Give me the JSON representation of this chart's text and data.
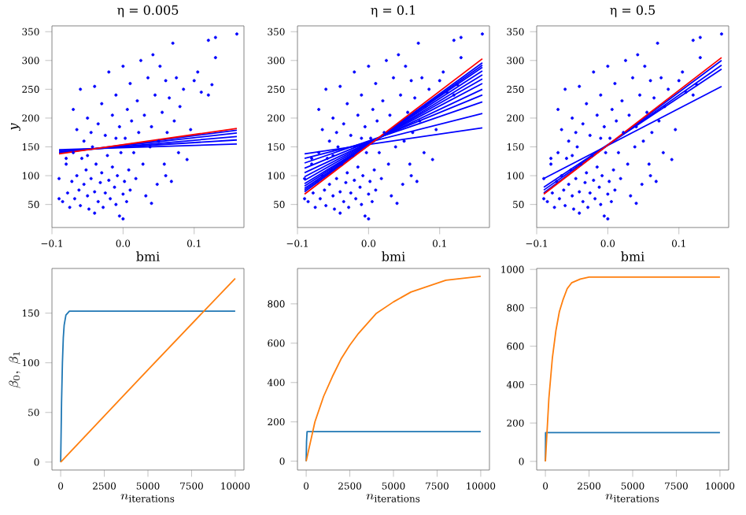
{
  "chart_data": [
    {
      "type": "scatter",
      "title": "η = 0.005",
      "xlabel": "bmi",
      "ylabel": "*y*",
      "xlim": [
        -0.1,
        0.17
      ],
      "ylim": [
        10,
        360
      ],
      "xticks": [
        {
          "value": -0.1,
          "label": "−0.1"
        },
        {
          "value": 0,
          "label": "0.0"
        },
        {
          "value": 0.1,
          "label": "0.1"
        }
      ],
      "yticks": [
        50,
        100,
        150,
        200,
        250,
        300,
        350
      ],
      "series": [
        {
          "type": "scatter",
          "color": "#0000ff",
          "x": [
            -0.09,
            -0.085,
            -0.08,
            -0.078,
            -0.075,
            -0.072,
            -0.07,
            -0.068,
            -0.065,
            -0.062,
            -0.06,
            -0.058,
            -0.055,
            -0.052,
            -0.05,
            -0.048,
            -0.045,
            -0.043,
            -0.04,
            -0.038,
            -0.035,
            -0.032,
            -0.03,
            -0.028,
            -0.025,
            -0.022,
            -0.02,
            -0.018,
            -0.015,
            -0.012,
            -0.01,
            -0.008,
            -0.005,
            -0.003,
            0.0,
            0.002,
            0.005,
            0.008,
            -0.07,
            -0.065,
            -0.06,
            -0.055,
            -0.05,
            -0.045,
            -0.04,
            -0.035,
            -0.03,
            -0.025,
            -0.02,
            -0.015,
            -0.01,
            -0.005,
            0.0,
            0.003,
            0.006,
            0.01,
            0.012,
            0.015,
            0.018,
            0.02,
            0.022,
            0.025,
            0.028,
            0.03,
            0.032,
            0.035,
            0.038,
            0.04,
            0.042,
            0.045,
            0.048,
            0.05,
            0.052,
            0.055,
            0.058,
            0.06,
            0.062,
            0.065,
            0.068,
            0.07,
            0.072,
            0.075,
            0.078,
            0.08,
            0.085,
            0.09,
            0.095,
            0.1,
            0.105,
            0.11,
            0.12,
            0.12,
            0.125,
            0.13,
            0.13,
            0.16,
            -0.09,
            -0.08,
            -0.04,
            0.0,
            -0.01,
            -0.05,
            0.01,
            0.04,
            0.06
          ],
          "values": [
            95,
            55,
            120,
            70,
            45,
            90,
            140,
            60,
            100,
            75,
            48,
            130,
            85,
            110,
            65,
            42,
            95,
            150,
            72,
            120,
            55,
            88,
            105,
            45,
            70,
            135,
            92,
            60,
            115,
            80,
            50,
            100,
            30,
            140,
            68,
            90,
            55,
            110,
            215,
            180,
            250,
            160,
            200,
            175,
            255,
            190,
            225,
            170,
            280,
            205,
            240,
            185,
            290,
            165,
            215,
            260,
            195,
            140,
            95,
            230,
            175,
            300,
            120,
            205,
            65,
            270,
            150,
            185,
            310,
            240,
            85,
            160,
            290,
            210,
            120,
            265,
            175,
            235,
            90,
            330,
            195,
            270,
            140,
            220,
            250,
            128,
            180,
            265,
            280,
            245,
            240,
            335,
            258,
            305,
            340,
            346,
            60,
            130,
            35,
            25,
            165,
            135,
            75,
            52,
            100
          ]
        },
        {
          "type": "line",
          "color": "#0000ff",
          "x": [
            -0.09,
            0.16
          ],
          "values": [
            145,
            155
          ]
        },
        {
          "type": "line",
          "color": "#0000ff",
          "x": [
            -0.09,
            0.16
          ],
          "values": [
            143,
            162
          ]
        },
        {
          "type": "line",
          "color": "#0000ff",
          "x": [
            -0.09,
            0.16
          ],
          "values": [
            141,
            168
          ]
        },
        {
          "type": "line",
          "color": "#0000ff",
          "x": [
            -0.09,
            0.16
          ],
          "values": [
            140,
            174
          ]
        },
        {
          "type": "line",
          "color": "#0000ff",
          "x": [
            -0.09,
            0.16
          ],
          "values": [
            139,
            179
          ]
        },
        {
          "type": "line",
          "color": "#ff0000",
          "x": [
            -0.09,
            0.16
          ],
          "values": [
            138,
            182
          ]
        }
      ]
    },
    {
      "type": "scatter",
      "title": "η = 0.1",
      "xlabel": "bmi",
      "xlim": [
        -0.1,
        0.17
      ],
      "ylim": [
        10,
        360
      ],
      "xticks": [
        {
          "value": -0.1,
          "label": "−0.1"
        },
        {
          "value": 0,
          "label": "0.0"
        },
        {
          "value": 0.1,
          "label": "0.1"
        }
      ],
      "yticks": [
        50,
        100,
        150,
        200,
        250,
        300,
        350
      ],
      "series": [
        {
          "type": "scatter",
          "color": "#0000ff",
          "x": [
            -0.09,
            -0.085,
            -0.08,
            -0.078,
            -0.075,
            -0.072,
            -0.07,
            -0.068,
            -0.065,
            -0.062,
            -0.06,
            -0.058,
            -0.055,
            -0.052,
            -0.05,
            -0.048,
            -0.045,
            -0.043,
            -0.04,
            -0.038,
            -0.035,
            -0.032,
            -0.03,
            -0.028,
            -0.025,
            -0.022,
            -0.02,
            -0.018,
            -0.015,
            -0.012,
            -0.01,
            -0.008,
            -0.005,
            -0.003,
            0.0,
            0.002,
            0.005,
            0.008,
            -0.07,
            -0.065,
            -0.06,
            -0.055,
            -0.05,
            -0.045,
            -0.04,
            -0.035,
            -0.03,
            -0.025,
            -0.02,
            -0.015,
            -0.01,
            -0.005,
            0.0,
            0.003,
            0.006,
            0.01,
            0.012,
            0.015,
            0.018,
            0.02,
            0.022,
            0.025,
            0.028,
            0.03,
            0.032,
            0.035,
            0.038,
            0.04,
            0.042,
            0.045,
            0.048,
            0.05,
            0.052,
            0.055,
            0.058,
            0.06,
            0.062,
            0.065,
            0.068,
            0.07,
            0.072,
            0.075,
            0.078,
            0.08,
            0.085,
            0.09,
            0.095,
            0.1,
            0.105,
            0.11,
            0.12,
            0.12,
            0.125,
            0.13,
            0.13,
            0.16,
            -0.09,
            -0.08,
            -0.04,
            0.0,
            -0.01,
            -0.05,
            0.01,
            0.04,
            0.06
          ],
          "values": [
            95,
            55,
            120,
            70,
            45,
            90,
            140,
            60,
            100,
            75,
            48,
            130,
            85,
            110,
            65,
            42,
            95,
            150,
            72,
            120,
            55,
            88,
            105,
            45,
            70,
            135,
            92,
            60,
            115,
            80,
            50,
            100,
            30,
            140,
            68,
            90,
            55,
            110,
            215,
            180,
            250,
            160,
            200,
            175,
            255,
            190,
            225,
            170,
            280,
            205,
            240,
            185,
            290,
            165,
            215,
            260,
            195,
            140,
            95,
            230,
            175,
            300,
            120,
            205,
            65,
            270,
            150,
            185,
            310,
            240,
            85,
            160,
            290,
            210,
            120,
            265,
            175,
            235,
            90,
            330,
            195,
            270,
            140,
            220,
            250,
            128,
            180,
            265,
            280,
            245,
            240,
            335,
            258,
            305,
            340,
            346,
            60,
            130,
            35,
            25,
            165,
            135,
            75,
            52,
            100
          ]
        },
        {
          "type": "line",
          "color": "#0000ff",
          "x": [
            -0.09,
            0.16
          ],
          "values": [
            138,
            183
          ]
        },
        {
          "type": "line",
          "color": "#0000ff",
          "x": [
            -0.09,
            0.16
          ],
          "values": [
            130,
            208
          ]
        },
        {
          "type": "line",
          "color": "#0000ff",
          "x": [
            -0.09,
            0.16
          ],
          "values": [
            122,
            228
          ]
        },
        {
          "type": "line",
          "color": "#0000ff",
          "x": [
            -0.09,
            0.16
          ],
          "values": [
            113,
            240
          ]
        },
        {
          "type": "line",
          "color": "#0000ff",
          "x": [
            -0.09,
            0.16
          ],
          "values": [
            105,
            250
          ]
        },
        {
          "type": "line",
          "color": "#0000ff",
          "x": [
            -0.09,
            0.16
          ],
          "values": [
            98,
            260
          ]
        },
        {
          "type": "line",
          "color": "#0000ff",
          "x": [
            -0.09,
            0.16
          ],
          "values": [
            92,
            268
          ]
        },
        {
          "type": "line",
          "color": "#0000ff",
          "x": [
            -0.09,
            0.16
          ],
          "values": [
            86,
            275
          ]
        },
        {
          "type": "line",
          "color": "#0000ff",
          "x": [
            -0.09,
            0.16
          ],
          "values": [
            82,
            282
          ]
        },
        {
          "type": "line",
          "color": "#0000ff",
          "x": [
            -0.09,
            0.16
          ],
          "values": [
            78,
            288
          ]
        },
        {
          "type": "line",
          "color": "#0000ff",
          "x": [
            -0.09,
            0.16
          ],
          "values": [
            75,
            292
          ]
        },
        {
          "type": "line",
          "color": "#0000ff",
          "x": [
            -0.09,
            0.16
          ],
          "values": [
            72,
            296
          ]
        },
        {
          "type": "line",
          "color": "#ff0000",
          "x": [
            -0.09,
            0.16
          ],
          "values": [
            68,
            303
          ]
        }
      ]
    },
    {
      "type": "scatter",
      "title": "η = 0.5",
      "xlabel": "bmi",
      "xlim": [
        -0.1,
        0.17
      ],
      "ylim": [
        10,
        360
      ],
      "xticks": [
        {
          "value": -0.1,
          "label": "−0.1"
        },
        {
          "value": 0,
          "label": "0.0"
        },
        {
          "value": 0.1,
          "label": "0.1"
        }
      ],
      "yticks": [
        50,
        100,
        150,
        200,
        250,
        300,
        350
      ],
      "series": [
        {
          "type": "scatter",
          "color": "#0000ff",
          "x": [
            -0.09,
            -0.085,
            -0.08,
            -0.078,
            -0.075,
            -0.072,
            -0.07,
            -0.068,
            -0.065,
            -0.062,
            -0.06,
            -0.058,
            -0.055,
            -0.052,
            -0.05,
            -0.048,
            -0.045,
            -0.043,
            -0.04,
            -0.038,
            -0.035,
            -0.032,
            -0.03,
            -0.028,
            -0.025,
            -0.022,
            -0.02,
            -0.018,
            -0.015,
            -0.012,
            -0.01,
            -0.008,
            -0.005,
            -0.003,
            0.0,
            0.002,
            0.005,
            0.008,
            -0.07,
            -0.065,
            -0.06,
            -0.055,
            -0.05,
            -0.045,
            -0.04,
            -0.035,
            -0.03,
            -0.025,
            -0.02,
            -0.015,
            -0.01,
            -0.005,
            0.0,
            0.003,
            0.006,
            0.01,
            0.012,
            0.015,
            0.018,
            0.02,
            0.022,
            0.025,
            0.028,
            0.03,
            0.032,
            0.035,
            0.038,
            0.04,
            0.042,
            0.045,
            0.048,
            0.05,
            0.052,
            0.055,
            0.058,
            0.06,
            0.062,
            0.065,
            0.068,
            0.07,
            0.072,
            0.075,
            0.078,
            0.08,
            0.085,
            0.09,
            0.095,
            0.1,
            0.105,
            0.11,
            0.12,
            0.12,
            0.125,
            0.13,
            0.13,
            0.16,
            -0.09,
            -0.08,
            -0.04,
            0.0,
            -0.01,
            -0.05,
            0.01,
            0.04,
            0.06
          ],
          "values": [
            95,
            55,
            120,
            70,
            45,
            90,
            140,
            60,
            100,
            75,
            48,
            130,
            85,
            110,
            65,
            42,
            95,
            150,
            72,
            120,
            55,
            88,
            105,
            45,
            70,
            135,
            92,
            60,
            115,
            80,
            50,
            100,
            30,
            140,
            68,
            90,
            55,
            110,
            215,
            180,
            250,
            160,
            200,
            175,
            255,
            190,
            225,
            170,
            280,
            205,
            240,
            185,
            290,
            165,
            215,
            260,
            195,
            140,
            95,
            230,
            175,
            300,
            120,
            205,
            65,
            270,
            150,
            185,
            310,
            240,
            85,
            160,
            290,
            210,
            120,
            265,
            175,
            235,
            90,
            330,
            195,
            270,
            140,
            220,
            250,
            128,
            180,
            265,
            280,
            245,
            240,
            335,
            258,
            305,
            340,
            346,
            60,
            130,
            35,
            25,
            165,
            135,
            75,
            52,
            100
          ]
        },
        {
          "type": "line",
          "color": "#0000ff",
          "x": [
            -0.09,
            0.16
          ],
          "values": [
            95,
            255
          ]
        },
        {
          "type": "line",
          "color": "#0000ff",
          "x": [
            -0.09,
            0.16
          ],
          "values": [
            80,
            285
          ]
        },
        {
          "type": "line",
          "color": "#0000ff",
          "x": [
            -0.09,
            0.16
          ],
          "values": [
            75,
            292
          ]
        },
        {
          "type": "line",
          "color": "#0000ff",
          "x": [
            -0.09,
            0.16
          ],
          "values": [
            70,
            300
          ]
        },
        {
          "type": "line",
          "color": "#ff0000",
          "x": [
            -0.09,
            0.16
          ],
          "values": [
            68,
            305
          ]
        }
      ]
    },
    {
      "type": "line",
      "xlabel": "n_{\\mathrm{iterations}}",
      "ylabel": "\\beta_0,\\ \\beta_1",
      "xlim": [
        -500,
        10500
      ],
      "ylim": [
        -8,
        195
      ],
      "xticks": [
        0,
        2500,
        5000,
        7500,
        10000
      ],
      "yticks": [
        0,
        50,
        100,
        150
      ],
      "series": [
        {
          "color": "#1f77b4",
          "x": [
            0,
            50,
            100,
            150,
            200,
            300,
            500,
            10000
          ],
          "values": [
            0,
            60,
            100,
            125,
            138,
            148,
            152,
            152
          ]
        },
        {
          "color": "#ff7f0e",
          "x": [
            0,
            5000,
            10000
          ],
          "values": [
            0,
            93,
            185
          ]
        }
      ]
    },
    {
      "type": "line",
      "xlabel": "n_{\\mathrm{iterations}}",
      "xlim": [
        -500,
        10500
      ],
      "ylim": [
        -45,
        980
      ],
      "xticks": [
        0,
        2500,
        5000,
        7500,
        10000
      ],
      "yticks": [
        0,
        200,
        400,
        600,
        800
      ],
      "series": [
        {
          "color": "#1f77b4",
          "x": [
            0,
            20,
            50,
            10000
          ],
          "values": [
            0,
            100,
            150,
            150
          ]
        },
        {
          "color": "#ff7f0e",
          "x": [
            0,
            500,
            1000,
            1500,
            2000,
            2500,
            3000,
            4000,
            5000,
            6000,
            7000,
            8000,
            9000,
            10000
          ],
          "values": [
            0,
            200,
            330,
            430,
            520,
            590,
            650,
            750,
            810,
            860,
            890,
            920,
            930,
            940
          ]
        }
      ]
    },
    {
      "type": "line",
      "xlabel": "n_{\\mathrm{iterations}}",
      "xlim": [
        -500,
        10500
      ],
      "ylim": [
        -45,
        1005
      ],
      "xticks": [
        0,
        2500,
        5000,
        7500,
        10000
      ],
      "yticks": [
        0,
        200,
        400,
        600,
        800,
        1000
      ],
      "series": [
        {
          "color": "#1f77b4",
          "x": [
            0,
            10,
            10000
          ],
          "values": [
            0,
            150,
            150
          ]
        },
        {
          "color": "#ff7f0e",
          "x": [
            0,
            200,
            400,
            600,
            800,
            1000,
            1250,
            1500,
            2000,
            2500,
            10000
          ],
          "values": [
            0,
            330,
            540,
            680,
            780,
            840,
            900,
            930,
            950,
            960,
            960
          ]
        }
      ]
    }
  ]
}
